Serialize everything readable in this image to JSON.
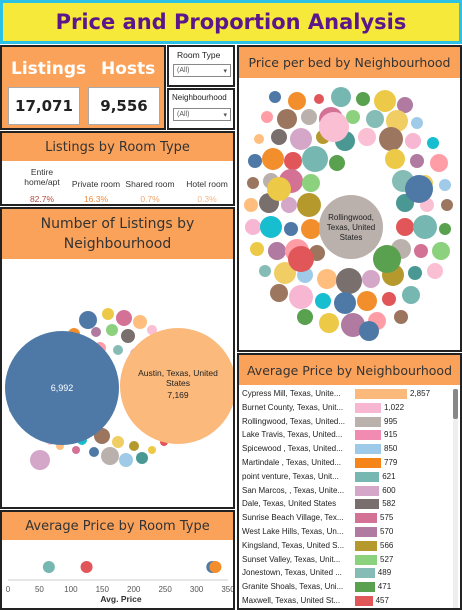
{
  "title": "Price and Proportion Analysis",
  "kpis": {
    "listings_label": "Listings",
    "hosts_label": "Hosts",
    "listings_value": "17,071",
    "hosts_value": "9,556"
  },
  "filters": {
    "room_type": {
      "label": "Room Type",
      "value": "(All)"
    },
    "neighbourhood": {
      "label": "Neighbourhood",
      "value": "(All)"
    }
  },
  "room_type_panel": {
    "title": "Listings by Room Type",
    "items": [
      {
        "name": "Entire home/apt",
        "pct": "82.7%",
        "color": "#b34a44"
      },
      {
        "name": "Private room",
        "pct": "16.3%",
        "color": "#f08a3a"
      },
      {
        "name": "Shared room",
        "pct": "0.7%",
        "color": "#f5a36a"
      },
      {
        "name": "Hotel room",
        "pct": "0.3%",
        "color": "#f5b888"
      }
    ]
  },
  "price_per_bed": {
    "title": "Price per bed by Neighbourhood",
    "big_label": "Rollingwood, Texas, United States"
  },
  "listings_by_neigh": {
    "title": "Number of Listings by Neighbourhood",
    "big_left_value": "6,992",
    "big_right_label": "Austin, Texas, United States",
    "big_right_value": "7,169"
  },
  "avg_price_room": {
    "title": "Average Price by Room Type",
    "xlabel": "Avg. Price",
    "ticks": [
      "0",
      "50",
      "100",
      "150",
      "200",
      "250",
      "300",
      "350"
    ]
  },
  "avg_price_neigh": {
    "title": "Average Price by Neighbourhood",
    "rows": [
      {
        "label": "Cypress Mill, Texas, Unite...",
        "value": "2,857",
        "color": "#fbb97c"
      },
      {
        "label": "Burnet County, Texas, Unit...",
        "value": "1,022",
        "color": "#f7b6d2"
      },
      {
        "label": "Rollingwood, Texas, United...",
        "value": "995",
        "color": "#bab0ac"
      },
      {
        "label": "Lake Travis, Texas, United...",
        "value": "915",
        "color": "#f28bb1"
      },
      {
        "label": "Spicewood , Texas, United...",
        "value": "850",
        "color": "#9ecae9"
      },
      {
        "label": "Martindale , Texas, United...",
        "value": "779",
        "color": "#f58518"
      },
      {
        "label": "point venture, Texas, Unit...",
        "value": "621",
        "color": "#76b7b2"
      },
      {
        "label": "San Marcos, , Texas, Unite...",
        "value": "600",
        "color": "#d4a6c8"
      },
      {
        "label": " Dale, Texas, United States",
        "value": "582",
        "color": "#79706e"
      },
      {
        "label": "Sunrise Beach Village, Tex...",
        "value": "575",
        "color": "#d37295"
      },
      {
        "label": "West Lake Hills, Texas, Un...",
        "value": "570",
        "color": "#b07aa1"
      },
      {
        "label": "Kingsland, Texas, United S...",
        "value": "566",
        "color": "#b6992d"
      },
      {
        "label": "Sunset Valley, Texas, Unit...",
        "value": "527",
        "color": "#8cd17d"
      },
      {
        "label": "Jonestown, Texas, United ...",
        "value": "489",
        "color": "#86bcb6"
      },
      {
        "label": "Granite Shoals, Texas, Uni...",
        "value": "471",
        "color": "#59a14f"
      },
      {
        "label": "Maxwell, Texas, United St...",
        "value": "457",
        "color": "#e15759"
      }
    ]
  },
  "chart_data": [
    {
      "type": "bar",
      "title": "Average Price by Neighbourhood",
      "categories": [
        "Cypress Mill, Texas, Unite...",
        "Burnet County, Texas, Unit...",
        "Rollingwood, Texas, United...",
        "Lake Travis, Texas, United...",
        "Spicewood , Texas, United...",
        "Martindale , Texas, United...",
        "point venture, Texas, Unit...",
        "San Marcos, , Texas, Unite...",
        " Dale, Texas, United States",
        "Sunrise Beach Village, Tex...",
        "West Lake Hills, Texas, Un...",
        "Kingsland, Texas, United S...",
        "Sunset Valley, Texas, Unit...",
        "Jonestown, Texas, United ...",
        "Granite Shoals, Texas, Uni...",
        "Maxwell, Texas, United St..."
      ],
      "values": [
        2857,
        1022,
        995,
        915,
        850,
        779,
        621,
        600,
        582,
        575,
        570,
        566,
        527,
        489,
        471,
        457
      ]
    },
    {
      "type": "scatter",
      "title": "Average Price by Room Type",
      "xlabel": "Avg. Price",
      "xlim": [
        0,
        350
      ],
      "points": [
        {
          "x": 65,
          "color": "#76b7b2"
        },
        {
          "x": 125,
          "color": "#e15759"
        },
        {
          "x": 325,
          "color": "#4e79a7"
        },
        {
          "x": 330,
          "color": "#f28e2b"
        }
      ]
    }
  ]
}
